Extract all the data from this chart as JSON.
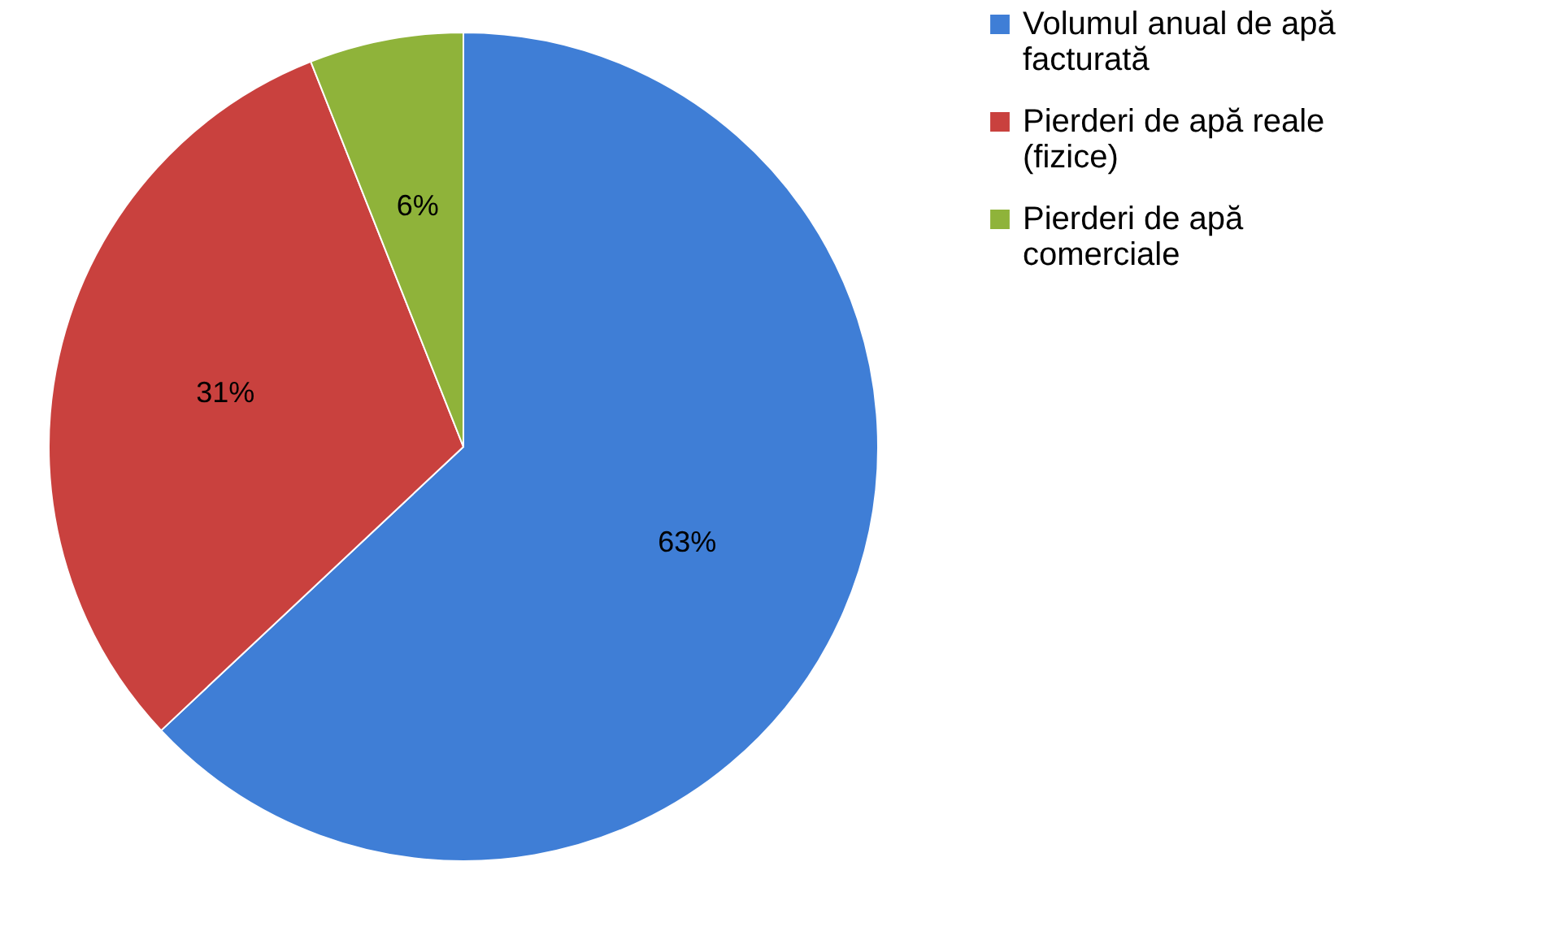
{
  "chart_data": {
    "type": "pie",
    "categories": [
      "Volumul anual de apă facturată",
      "Pierderi de apă reale (fizice)",
      "Pierderi de apă comerciale"
    ],
    "values": [
      63,
      31,
      6
    ],
    "colors": [
      "#3f7ed6",
      "#c9413e",
      "#8fb33a"
    ],
    "value_labels": [
      "63%",
      "31%",
      "6%"
    ],
    "legend": "right"
  }
}
